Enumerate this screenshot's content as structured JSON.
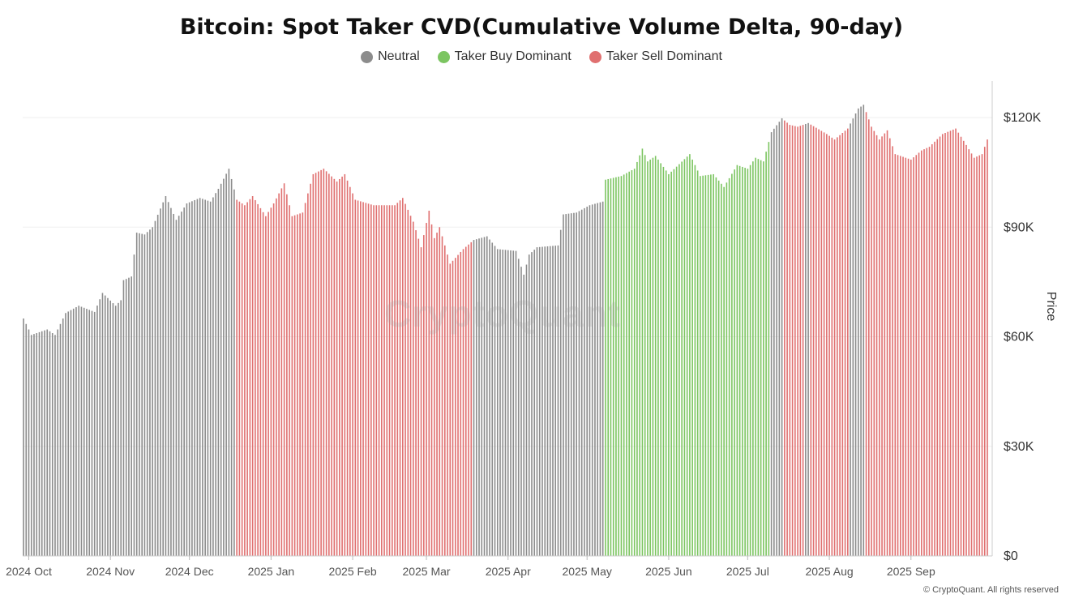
{
  "chart_data": {
    "type": "bar",
    "title": "Bitcoin: Spot Taker CVD(Cumulative Volume Delta, 90-day)",
    "ylabel": "Price",
    "xlabel": "",
    "ylim": [
      0,
      130000
    ],
    "y_ticks": [
      {
        "value": 0,
        "label": "$0"
      },
      {
        "value": 30000,
        "label": "$30K"
      },
      {
        "value": 60000,
        "label": "$60K"
      },
      {
        "value": 90000,
        "label": "$90K"
      },
      {
        "value": 120000,
        "label": "$120K"
      }
    ],
    "x_ticks": [
      {
        "date": "2024-10-01",
        "label": "2024 Oct"
      },
      {
        "date": "2024-11-01",
        "label": "2024 Nov"
      },
      {
        "date": "2024-12-01",
        "label": "2024 Dec"
      },
      {
        "date": "2025-01-01",
        "label": "2025 Jan"
      },
      {
        "date": "2025-02-01",
        "label": "2025 Feb"
      },
      {
        "date": "2025-03-01",
        "label": "2025 Mar"
      },
      {
        "date": "2025-04-01",
        "label": "2025 Apr"
      },
      {
        "date": "2025-05-01",
        "label": "2025 May"
      },
      {
        "date": "2025-06-01",
        "label": "2025 Jun"
      },
      {
        "date": "2025-07-01",
        "label": "2025 Jul"
      },
      {
        "date": "2025-08-01",
        "label": "2025 Aug"
      },
      {
        "date": "2025-09-01",
        "label": "2025 Sep"
      }
    ],
    "x_start": "2024-09-29",
    "x_end": "2025-09-30",
    "grid": true,
    "legend_position": "top-center",
    "category_colors": {
      "Neutral": "#8c8c8c",
      "Taker Buy Dominant": "#7cc561",
      "Taker Sell Dominant": "#e07070"
    },
    "series": [
      {
        "name": "Neutral",
        "color": "#8c8c8c"
      },
      {
        "name": "Taker Buy Dominant",
        "color": "#7cc561"
      },
      {
        "name": "Taker Sell Dominant",
        "color": "#e07070"
      }
    ],
    "price_anchors": [
      [
        "2024-09-29",
        65000
      ],
      [
        "2024-10-02",
        60500
      ],
      [
        "2024-10-08",
        62000
      ],
      [
        "2024-10-11",
        60500
      ],
      [
        "2024-10-15",
        66500
      ],
      [
        "2024-10-20",
        68500
      ],
      [
        "2024-10-26",
        66800
      ],
      [
        "2024-10-29",
        72000
      ],
      [
        "2024-11-03",
        68500
      ],
      [
        "2024-11-05",
        70000
      ],
      [
        "2024-11-06",
        75500
      ],
      [
        "2024-11-09",
        76500
      ],
      [
        "2024-11-11",
        88500
      ],
      [
        "2024-11-14",
        88000
      ],
      [
        "2024-11-17",
        90000
      ],
      [
        "2024-11-22",
        98500
      ],
      [
        "2024-11-26",
        92000
      ],
      [
        "2024-11-30",
        96500
      ],
      [
        "2024-12-05",
        98000
      ],
      [
        "2024-12-09",
        97000
      ],
      [
        "2024-12-12",
        100500
      ],
      [
        "2024-12-16",
        106000
      ],
      [
        "2024-12-19",
        97500
      ],
      [
        "2024-12-22",
        96000
      ],
      [
        "2024-12-25",
        98500
      ],
      [
        "2024-12-30",
        93000
      ],
      [
        "2025-01-02",
        96500
      ],
      [
        "2025-01-06",
        102000
      ],
      [
        "2025-01-09",
        93000
      ],
      [
        "2025-01-13",
        94000
      ],
      [
        "2025-01-17",
        104500
      ],
      [
        "2025-01-21",
        106000
      ],
      [
        "2025-01-26",
        102500
      ],
      [
        "2025-01-29",
        104500
      ],
      [
        "2025-02-02",
        97500
      ],
      [
        "2025-02-09",
        96000
      ],
      [
        "2025-02-17",
        96000
      ],
      [
        "2025-02-20",
        98000
      ],
      [
        "2025-02-24",
        91500
      ],
      [
        "2025-02-27",
        84500
      ],
      [
        "2025-03-02",
        94500
      ],
      [
        "2025-03-04",
        87000
      ],
      [
        "2025-03-06",
        90000
      ],
      [
        "2025-03-10",
        80000
      ],
      [
        "2025-03-15",
        84000
      ],
      [
        "2025-03-19",
        86500
      ],
      [
        "2025-03-24",
        87500
      ],
      [
        "2025-03-28",
        84000
      ],
      [
        "2025-04-04",
        83500
      ],
      [
        "2025-04-07",
        77000
      ],
      [
        "2025-04-09",
        82500
      ],
      [
        "2025-04-12",
        84500
      ],
      [
        "2025-04-20",
        85000
      ],
      [
        "2025-04-22",
        93500
      ],
      [
        "2025-04-27",
        94000
      ],
      [
        "2025-05-02",
        96000
      ],
      [
        "2025-05-07",
        97000
      ],
      [
        "2025-05-08",
        103000
      ],
      [
        "2025-05-14",
        104000
      ],
      [
        "2025-05-19",
        106000
      ],
      [
        "2025-05-22",
        111500
      ],
      [
        "2025-05-24",
        108000
      ],
      [
        "2025-05-27",
        109500
      ],
      [
        "2025-06-01",
        104500
      ],
      [
        "2025-06-09",
        110000
      ],
      [
        "2025-06-13",
        104000
      ],
      [
        "2025-06-18",
        104500
      ],
      [
        "2025-06-22",
        101000
      ],
      [
        "2025-06-27",
        107000
      ],
      [
        "2025-07-01",
        106000
      ],
      [
        "2025-07-04",
        109000
      ],
      [
        "2025-07-07",
        108000
      ],
      [
        "2025-07-10",
        116000
      ],
      [
        "2025-07-14",
        119800
      ],
      [
        "2025-07-17",
        118000
      ],
      [
        "2025-07-20",
        117500
      ],
      [
        "2025-07-24",
        118500
      ],
      [
        "2025-07-31",
        115500
      ],
      [
        "2025-08-03",
        114000
      ],
      [
        "2025-08-08",
        117000
      ],
      [
        "2025-08-12",
        122500
      ],
      [
        "2025-08-14",
        123500
      ],
      [
        "2025-08-17",
        117500
      ],
      [
        "2025-08-20",
        114000
      ],
      [
        "2025-08-23",
        116500
      ],
      [
        "2025-08-26",
        110000
      ],
      [
        "2025-09-01",
        108500
      ],
      [
        "2025-09-05",
        111000
      ],
      [
        "2025-09-08",
        112000
      ],
      [
        "2025-09-13",
        115500
      ],
      [
        "2025-09-18",
        117000
      ],
      [
        "2025-09-22",
        112500
      ],
      [
        "2025-09-25",
        109000
      ],
      [
        "2025-09-28",
        110000
      ],
      [
        "2025-09-30",
        114000
      ]
    ],
    "segments": [
      {
        "start": "2024-09-29",
        "end": "2024-12-18",
        "category": "Neutral"
      },
      {
        "start": "2024-12-19",
        "end": "2025-03-18",
        "category": "Taker Sell Dominant"
      },
      {
        "start": "2025-03-19",
        "end": "2025-05-07",
        "category": "Neutral"
      },
      {
        "start": "2025-05-08",
        "end": "2025-07-09",
        "category": "Taker Buy Dominant"
      },
      {
        "start": "2025-07-10",
        "end": "2025-07-14",
        "category": "Neutral"
      },
      {
        "start": "2025-07-15",
        "end": "2025-07-22",
        "category": "Taker Sell Dominant"
      },
      {
        "start": "2025-07-23",
        "end": "2025-07-24",
        "category": "Neutral"
      },
      {
        "start": "2025-07-25",
        "end": "2025-08-08",
        "category": "Taker Sell Dominant"
      },
      {
        "start": "2025-08-09",
        "end": "2025-08-14",
        "category": "Neutral"
      },
      {
        "start": "2025-08-15",
        "end": "2025-09-30",
        "category": "Taker Sell Dominant"
      }
    ]
  },
  "watermark": "CryptoQuant",
  "copyright": "© CryptoQuant. All rights reserved"
}
